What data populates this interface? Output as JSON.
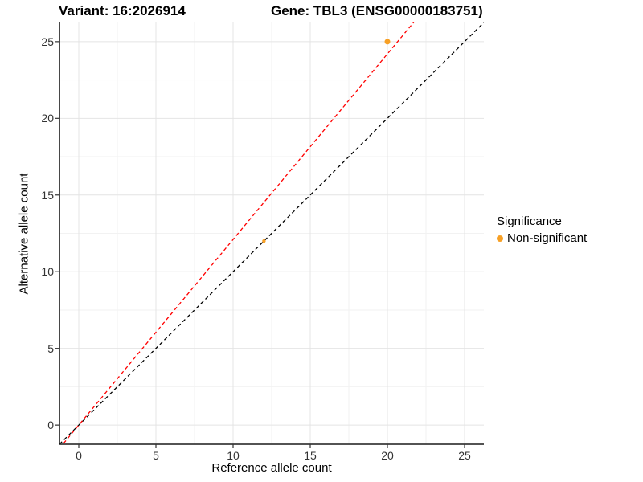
{
  "titles": {
    "variant": "Variant: 16:2026914",
    "gene": "Gene: TBL3 (ENSG00000183751)"
  },
  "chart_data": {
    "type": "scatter",
    "title_left": "Variant: 16:2026914",
    "title_right": "Gene: TBL3 (ENSG00000183751)",
    "xlabel": "Reference allele count",
    "ylabel": "Alternative allele count",
    "xlim": [
      -1.25,
      26.25
    ],
    "ylim": [
      -1.25,
      26.25
    ],
    "xticks": [
      0,
      5,
      10,
      15,
      20,
      25
    ],
    "yticks": [
      0,
      5,
      10,
      15,
      20,
      25
    ],
    "minor_xticks": [
      2.5,
      7.5,
      12.5,
      17.5,
      22.5
    ],
    "minor_yticks": [
      2.5,
      7.5,
      12.5,
      17.5,
      22.5
    ],
    "grid": true,
    "colors": {
      "major_grid": "#e4e4e4",
      "minor_grid": "#f2f2f2",
      "axis_line": "#1a1a1a",
      "tick_mark": "#333333",
      "point_orange": "#F7A025",
      "identity_line": "#000000",
      "ratio_line": "#FF0000"
    },
    "points": [
      {
        "x": 12,
        "y": 12,
        "r": 2.2,
        "series": "Non-significant"
      },
      {
        "x": 20,
        "y": 25,
        "r": 3.5,
        "series": "Non-significant"
      }
    ],
    "lines": [
      {
        "name": "identity-line",
        "slope": 1.0,
        "intercept": 0,
        "color": "#000000",
        "dashed": true
      },
      {
        "name": "allelic-ratio-line",
        "slope": 1.21,
        "intercept": 0,
        "color": "#FF0000",
        "dashed": true
      }
    ],
    "legend": {
      "title": "Significance",
      "position": "right",
      "items": [
        {
          "label": "Non-significant",
          "color": "#F7A025"
        }
      ]
    }
  }
}
